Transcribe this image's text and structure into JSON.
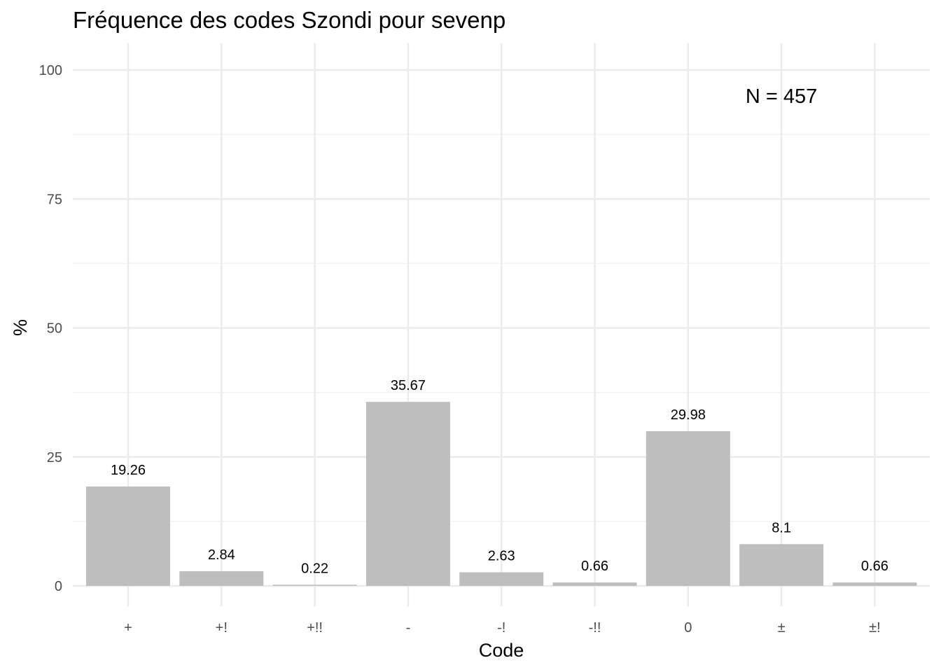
{
  "chart_data": {
    "type": "bar",
    "title": "Fréquence des codes Szondi pour sevenp",
    "xlabel": "Code",
    "ylabel": "%",
    "categories": [
      "+",
      "+!",
      "+!!",
      "-",
      "-!",
      "-!!",
      "0",
      "±",
      "±!"
    ],
    "values": [
      19.26,
      2.84,
      0.22,
      35.67,
      2.63,
      0.66,
      29.98,
      8.1,
      0.66
    ],
    "value_labels": [
      "19.26",
      "2.84",
      "0.22",
      "35.67",
      "2.63",
      "0.66",
      "29.98",
      "8.1",
      "0.66"
    ],
    "ylim": [
      0,
      105
    ],
    "yticks": [
      0,
      25,
      50,
      75,
      100
    ],
    "ytick_labels": [
      "0",
      "25",
      "50",
      "75",
      "100"
    ],
    "annotation": "N = 457",
    "annotation_position": {
      "x_category": "±",
      "y": 95
    },
    "grid": true,
    "legend": "none",
    "colors": {
      "bar": "#bebebe",
      "grid_major": "#ebebeb",
      "grid_minor": "#f3f3f3",
      "background": "#ffffff"
    }
  }
}
